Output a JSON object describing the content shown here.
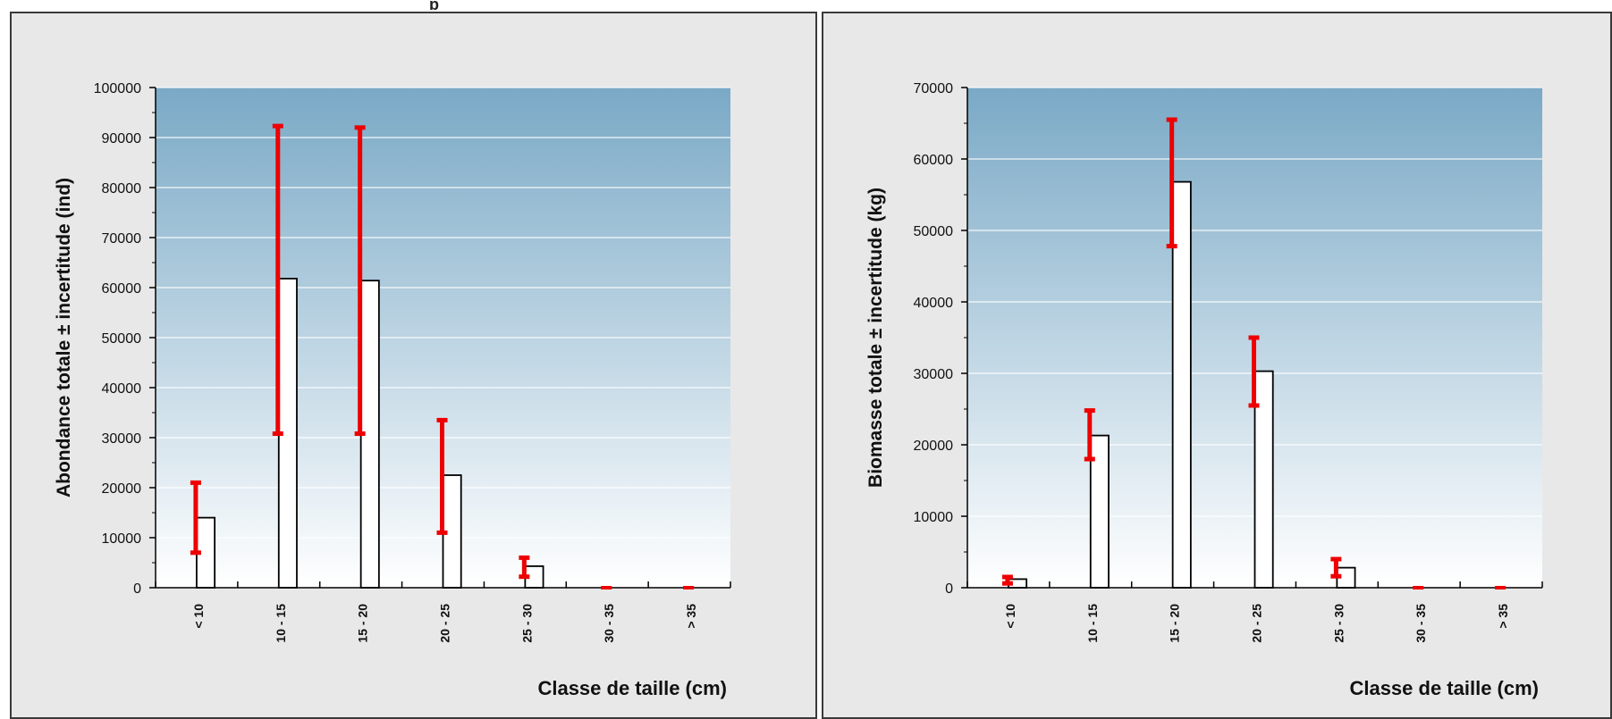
{
  "header": {
    "title_fragment": "p"
  },
  "chart_data": [
    {
      "type": "bar",
      "ylabel": "Abondance totale ± incertitude (ind)",
      "xlabel": "Classe de taille (cm)",
      "categories": [
        "< 10",
        "10 - 15",
        "15 - 20",
        "20 - 25",
        "25 - 30",
        "30 - 35",
        "> 35"
      ],
      "values": [
        14000,
        61800,
        61400,
        22500,
        4300,
        0,
        0
      ],
      "error_low": [
        7000,
        30800,
        30800,
        11000,
        2200,
        0,
        0
      ],
      "error_high": [
        21000,
        92300,
        92000,
        33500,
        6000,
        0,
        0
      ],
      "ylim": [
        0,
        100000
      ],
      "yticks": [
        "0",
        "10000",
        "20000",
        "30000",
        "40000",
        "50000",
        "60000",
        "70000",
        "80000",
        "90000",
        "100000"
      ],
      "grid": true,
      "colors": {
        "bar_fill": "#ffffff",
        "bar_stroke": "#000000",
        "error": "#ee0000",
        "plot_top": "#7aa9c6",
        "plot_bottom": "#ffffff"
      }
    },
    {
      "type": "bar",
      "ylabel": "Biomasse totale ± incertitude (kg)",
      "xlabel": "Classe de taille (cm)",
      "categories": [
        "< 10",
        "10 - 15",
        "15 - 20",
        "20 - 25",
        "25 - 30",
        "30 - 35",
        "> 35"
      ],
      "values": [
        1200,
        21300,
        56800,
        30300,
        2800,
        0,
        0
      ],
      "error_low": [
        600,
        18000,
        47800,
        25500,
        1600,
        0,
        0
      ],
      "error_high": [
        1500,
        24800,
        65500,
        35000,
        4000,
        0,
        0
      ],
      "ylim": [
        0,
        70000
      ],
      "yticks": [
        "0",
        "10000",
        "20000",
        "30000",
        "40000",
        "50000",
        "60000",
        "70000"
      ],
      "grid": true,
      "colors": {
        "bar_fill": "#ffffff",
        "bar_stroke": "#000000",
        "error": "#ee0000",
        "plot_top": "#7aa9c6",
        "plot_bottom": "#ffffff"
      }
    }
  ]
}
